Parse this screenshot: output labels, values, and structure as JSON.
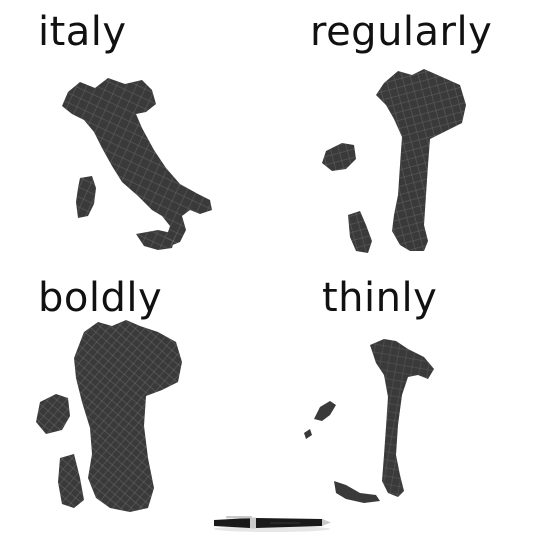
{
  "labels": {
    "italy": "italy",
    "regularly": "regularly",
    "boldly": "boldly",
    "thinly": "thinly"
  },
  "colors": {
    "map_fill": "#3a3a3a",
    "road_lines": "#8c8c8c",
    "label_text": "#111111",
    "background": "#ffffff",
    "pen_body": "#1a1a1a",
    "pen_metal": "#c9c9c9"
  }
}
